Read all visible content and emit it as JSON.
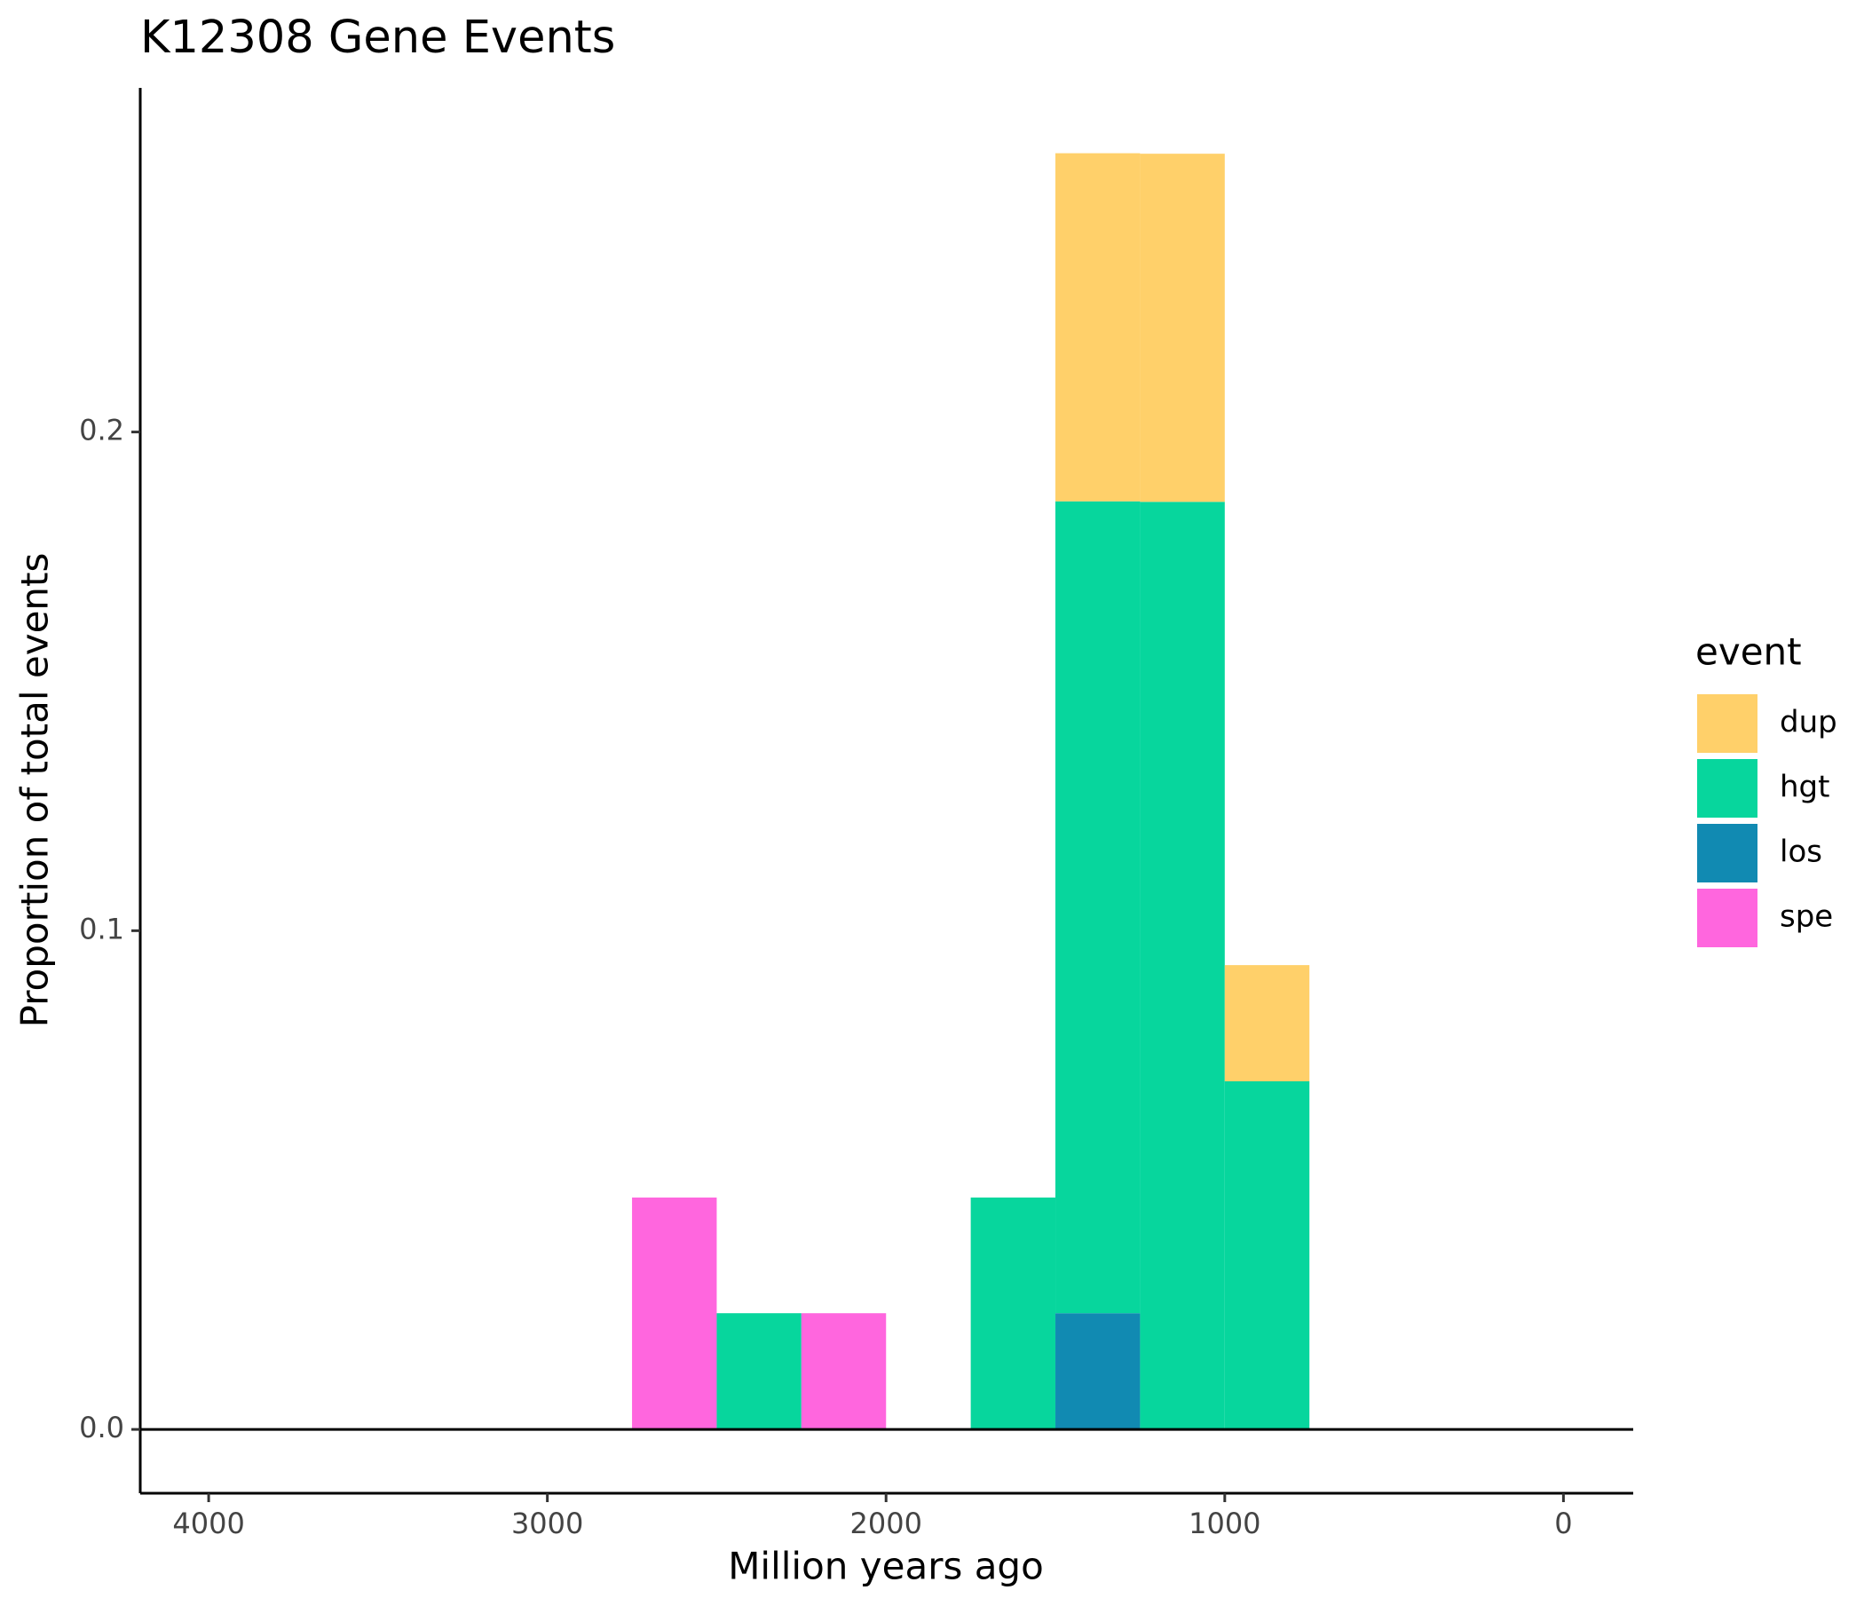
{
  "chart_data": {
    "type": "stacked-histogram",
    "title": "K12308 Gene Events",
    "x_label": "Million years ago",
    "y_label": "Proportion of total events",
    "legend_title": "event",
    "legend_position": "right",
    "bins": [
      2750,
      2500,
      2250,
      2000,
      1750,
      1500,
      1250,
      1000,
      750
    ],
    "series": [
      {
        "name": "dup",
        "color": "#ffd06a",
        "values": [
          0,
          0,
          0,
          0,
          0,
          0.0698,
          0.0698,
          0.0233
        ]
      },
      {
        "name": "hgt",
        "color": "#07d69d",
        "values": [
          0,
          0.0233,
          0,
          0,
          0.0465,
          0.1628,
          0.186,
          0.0698
        ]
      },
      {
        "name": "los",
        "color": "#118ab2",
        "values": [
          0,
          0,
          0,
          0,
          0,
          0.0233,
          0,
          0
        ]
      },
      {
        "name": "spe",
        "color": "#ff66de",
        "values": [
          0.0465,
          0,
          0.0233,
          0,
          0,
          0,
          0,
          0
        ]
      }
    ],
    "xlim": [
      4202,
      -206
    ],
    "xticks": [
      4000,
      3000,
      2000,
      1000,
      0
    ],
    "ylim": [
      -0.0128,
      0.269
    ],
    "yticks": [
      {
        "value": 0,
        "label": "0.0"
      },
      0.1,
      0.2
    ],
    "grid": false
  }
}
